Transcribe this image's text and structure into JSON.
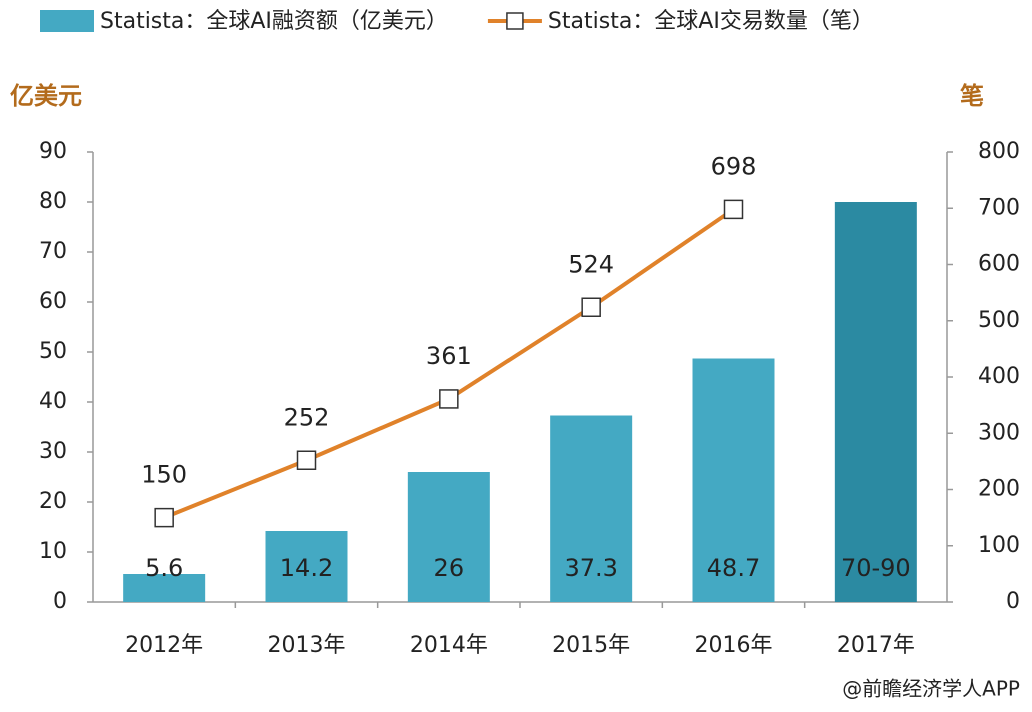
{
  "chart_data": {
    "type": "bar_line",
    "legend": "top",
    "y_label": "亿美元",
    "y2_label": "笔",
    "source": "@前瞻经济学人APP",
    "categories": [
      "2012年",
      "2013年",
      "2014年",
      "2015年",
      "2016年",
      "2017年"
    ],
    "series": [
      {
        "name": "Statista：全球AI融资额（亿美元）",
        "type": "bar",
        "color": "#44a9c3",
        "colors": [
          "#44a9c3",
          "#44a9c3",
          "#44a9c3",
          "#44a9c3",
          "#44a9c3",
          "#2b8aa2"
        ],
        "values": [
          5.6,
          14.2,
          26,
          37.3,
          48.7,
          80
        ],
        "value_labels": [
          "5.6",
          "14.2",
          "26",
          "37.3",
          "48.7",
          "70-90"
        ]
      },
      {
        "name": "Statista：全球AI交易数量（笔）",
        "type": "line",
        "axis": "y2",
        "color": "#e0822a",
        "values": [
          150,
          252,
          361,
          524,
          698,
          null
        ]
      }
    ],
    "ylim": [
      0,
      90
    ],
    "yticks": [
      0,
      10,
      20,
      30,
      40,
      50,
      60,
      70,
      80,
      90
    ],
    "y2lim": [
      0,
      800
    ],
    "y2ticks": [
      0,
      100,
      200,
      300,
      400,
      500,
      600,
      700,
      800
    ],
    "grid": false
  }
}
